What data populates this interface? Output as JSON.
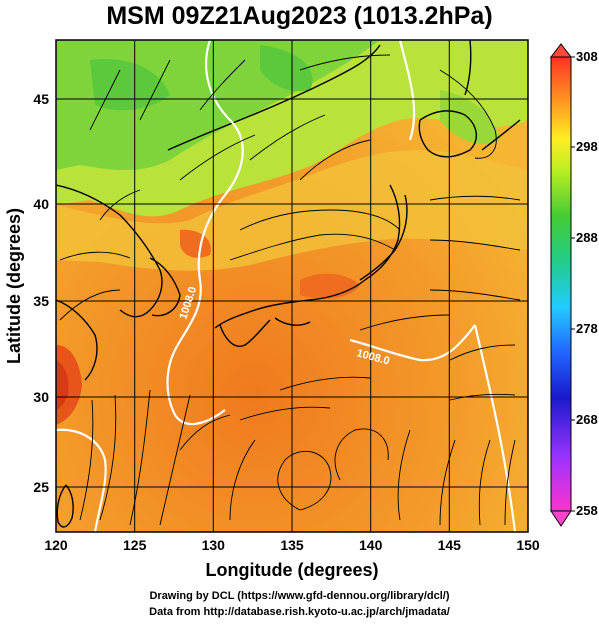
{
  "title": "MSM 09Z21Aug2023 (1013.2hPa)",
  "xlabel": "Longitude (degrees)",
  "ylabel": "Latitude  (degrees)",
  "x_ticks": [
    "120",
    "125",
    "130",
    "135",
    "140",
    "145",
    "150"
  ],
  "y_ticks": [
    "25",
    "30",
    "35",
    "40",
    "45"
  ],
  "colorbar_ticks": [
    "308",
    "298",
    "288",
    "278",
    "268",
    "258"
  ],
  "contour_labels": [
    "1008.0",
    "1008.0"
  ],
  "footer": {
    "line1": "Drawing by DCL (https://www.gfd-dennou.org/library/dcl/)",
    "line2": "Data from http://database.rish.kyoto-u.ac.jp/arch/jmadata/"
  },
  "map_data": {
    "lon_range": [
      120,
      150
    ],
    "lat_range": [
      22.4,
      47.6
    ],
    "grid_lon": [
      120,
      125,
      130,
      135,
      140,
      145,
      150
    ],
    "grid_lat": [
      25,
      30,
      35,
      40,
      45
    ],
    "colorbar_range": [
      258,
      308
    ]
  }
}
